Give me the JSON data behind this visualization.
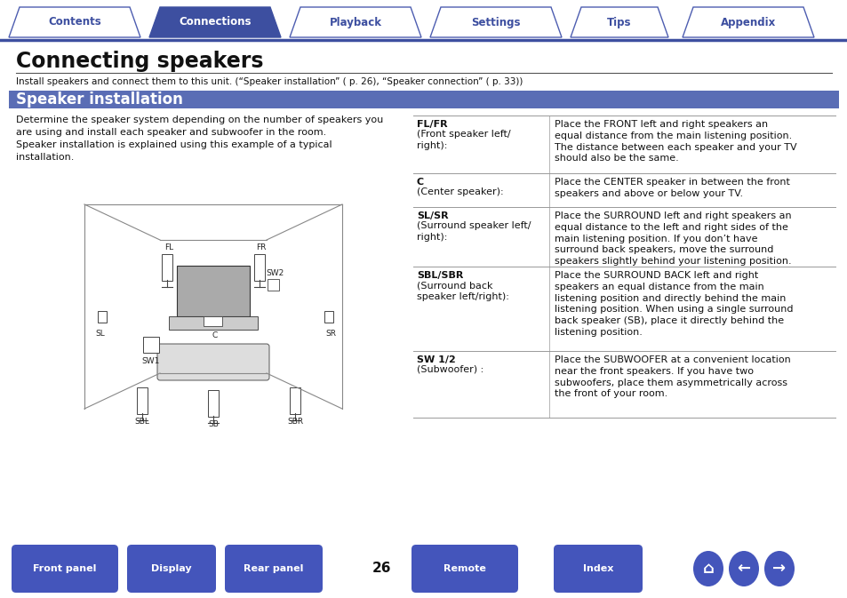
{
  "tab_labels": [
    "Contents",
    "Connections",
    "Playback",
    "Settings",
    "Tips",
    "Appendix"
  ],
  "tab_active_idx": 1,
  "tab_color_active": "#3d4fa0",
  "tab_color_inactive_fill": "#ffffff",
  "tab_color_inactive_border": "#4d5db0",
  "tab_text_color_active": "#ffffff",
  "tab_text_color_inactive": "#3d4fa0",
  "tab_line_color": "#3d4fa0",
  "title": "Connecting speakers",
  "title_fontsize": 17,
  "subtitle_bar_text": "Speaker installation",
  "subtitle_bar_color": "#5a6db5",
  "subtitle_bar_text_color": "#ffffff",
  "subtitle_fontsize": 12,
  "intro_text": "Install speakers and connect them to this unit. (“Speaker installation” ( p. 26), “Speaker connection” ( p. 33))",
  "body_left_text": "Determine the speaker system depending on the number of speakers you\nare using and install each speaker and subwoofer in the room.\nSpeaker installation is explained using this example of a typical\ninstallation.",
  "table_rows": [
    {
      "label1": "FL/FR",
      "label1_bold": true,
      "label2": "(Front speaker left/\nright):",
      "desc": "Place the FRONT left and right speakers an\nequal distance from the main listening position.\nThe distance between each speaker and your TV\nshould also be the same."
    },
    {
      "label1": "C",
      "label1_bold": true,
      "label2": "(Center speaker):",
      "desc": "Place the CENTER speaker in between the front\nspeakers and above or below your TV."
    },
    {
      "label1": "SL/SR",
      "label1_bold": true,
      "label2": "(Surround speaker left/\nright):",
      "desc": "Place the SURROUND left and right speakers an\nequal distance to the left and right sides of the\nmain listening position. If you don’t have\nsurround back speakers, move the surround\nspeakers slightly behind your listening position."
    },
    {
      "label1": "SBL/SBR",
      "label1_bold": true,
      "label2": "(Surround back\nspeaker left/right):",
      "desc": "Place the SURROUND BACK left and right\nspeakers an equal distance from the main\nlistening position and directly behind the main\nlistening position. When using a single surround\nback speaker (SB), place it directly behind the\nlistening position."
    },
    {
      "label1": "SW 1/2",
      "label1_bold": true,
      "label2": "(Subwoofer) :",
      "desc": "Place the SUBWOOFER at a convenient location\nnear the front speakers. If you have two\nsubwoofers, place them asymmetrically across\nthe front of your room."
    }
  ],
  "page_number": "26",
  "bottom_buttons": [
    "Front panel",
    "Display",
    "Rear panel",
    "Remote",
    "Index"
  ],
  "bottom_button_color": "#4455bb",
  "bottom_button_text_color": "#ffffff",
  "background_color": "#ffffff",
  "table_line_color": "#999999",
  "body_text_fontsize": 8.0,
  "table_label_fontsize": 8.0,
  "table_desc_fontsize": 8.0
}
